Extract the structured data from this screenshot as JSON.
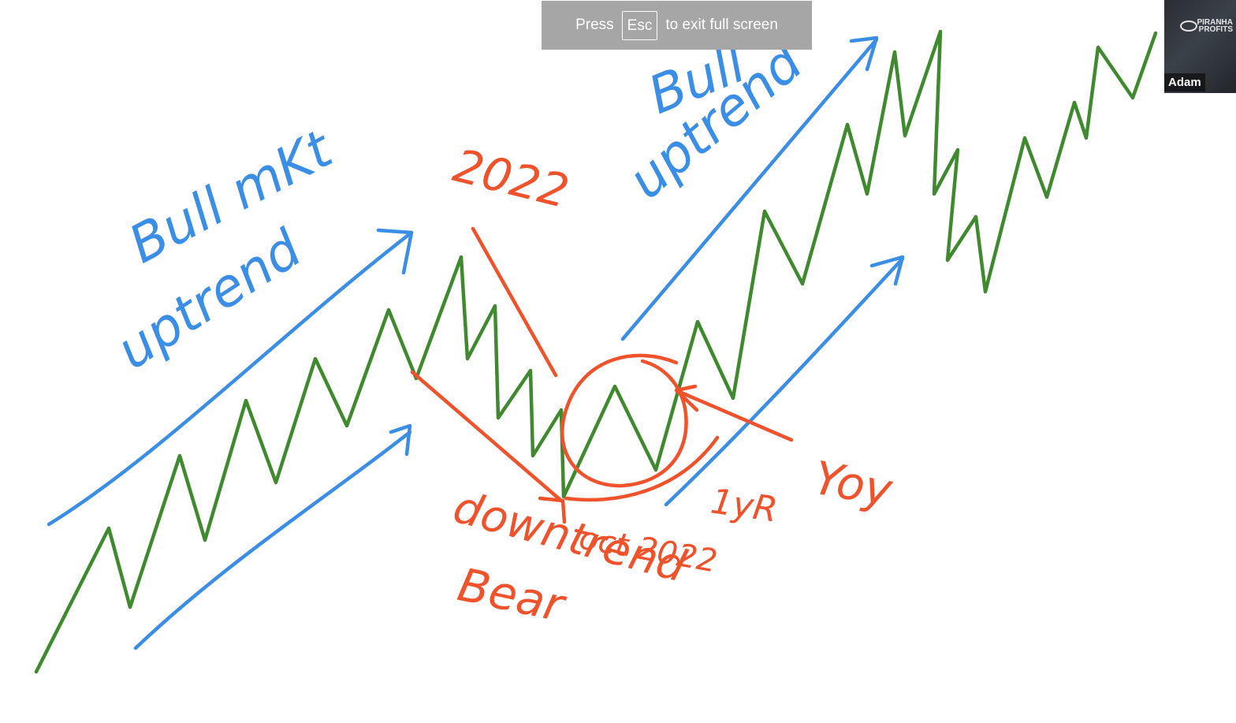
{
  "fullscreen_notice": {
    "press_text": "Press",
    "key_label": "Esc",
    "suffix_text": "to exit full screen"
  },
  "participant": {
    "name": "Adam",
    "logo_text_line1": "PIRANHA",
    "logo_text_line2": "PROFITS"
  },
  "annotations": {
    "bull_mkt_line1": "Bull mKt",
    "bull_mkt_line2": "uptrend",
    "year_2022": "2022",
    "bull_line1": "Bull",
    "bull_line2": "uptrend",
    "downtrend": "downtrend",
    "bear": "Bear",
    "oct_2022": "oct 2022",
    "one_yr": "1yR",
    "yoy": "Yoy"
  },
  "colors": {
    "blue_ink": "#3a8ee6",
    "green_ink": "#3f8a2e",
    "red_ink": "#f0522b",
    "toast_bg": "#a6a6a6"
  }
}
